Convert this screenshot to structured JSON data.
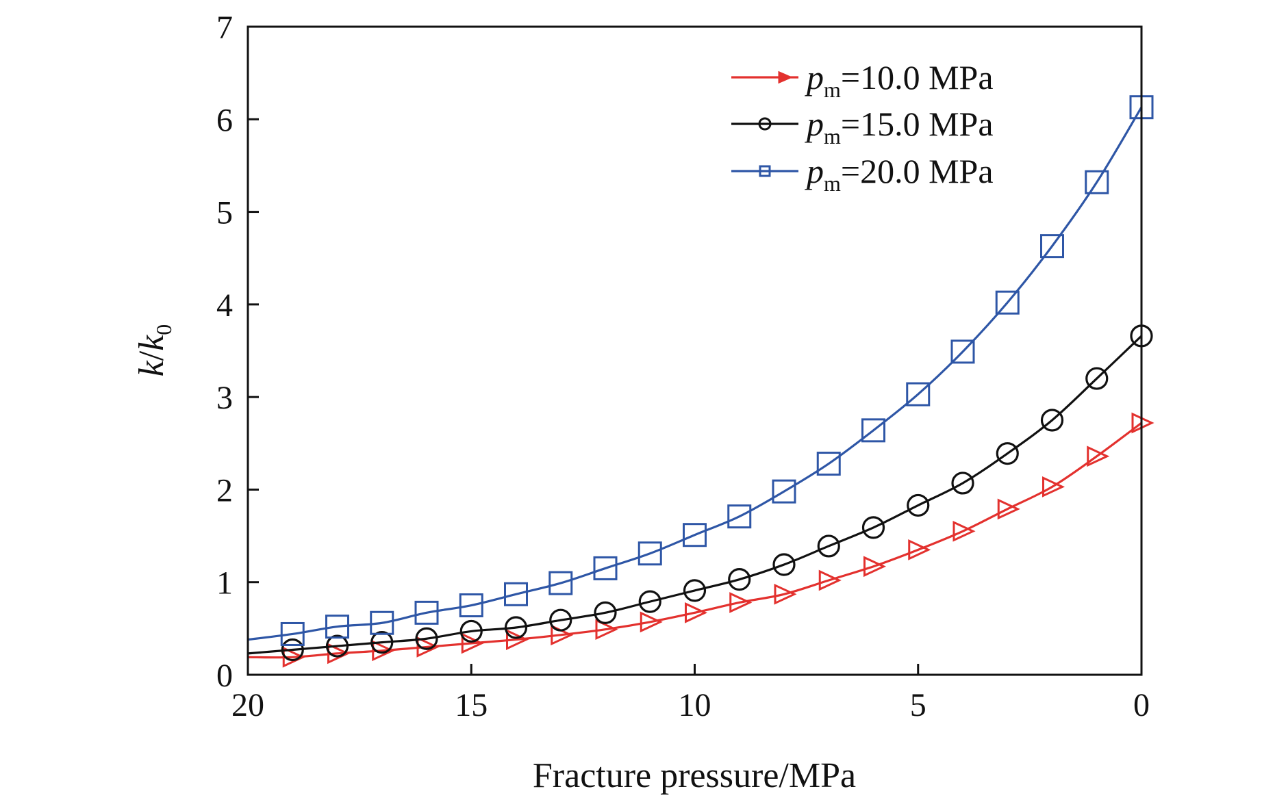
{
  "chart_data": {
    "type": "line",
    "title": "",
    "xlabel": "Fracture pressure/MPa",
    "ylabel": {
      "num": "k",
      "den": "k",
      "den_sub": "0"
    },
    "xlim": [
      20,
      0
    ],
    "ylim": [
      0,
      7
    ],
    "x_reversed": true,
    "xticks": [
      20,
      15,
      10,
      5,
      0
    ],
    "yticks": [
      0,
      1,
      2,
      3,
      4,
      5,
      6,
      7
    ],
    "xtick_labels": [
      "20",
      "15",
      "10",
      "5",
      "0"
    ],
    "ytick_labels": [
      "0",
      "1",
      "2",
      "3",
      "4",
      "5",
      "6",
      "7"
    ],
    "grid": false,
    "legend_position": "top-right",
    "x": [
      19,
      18,
      17,
      16,
      15,
      14,
      13,
      12,
      11,
      10,
      9,
      8,
      7,
      6,
      5,
      4,
      3,
      2,
      1,
      0
    ],
    "series": [
      {
        "name": "p_m=10.0 MPa",
        "legend_var": "p",
        "legend_sub": "m",
        "legend_rest": "=10.0 MPa",
        "color": "#e3312e",
        "marker": "triangle-right",
        "line_start": [
          20,
          0.19
        ],
        "values": [
          0.19,
          0.23,
          0.26,
          0.3,
          0.34,
          0.38,
          0.43,
          0.49,
          0.57,
          0.67,
          0.78,
          0.87,
          1.02,
          1.17,
          1.35,
          1.55,
          1.79,
          2.03,
          2.36,
          2.72
        ]
      },
      {
        "name": "p_m=15.0 MPa",
        "legend_var": "p",
        "legend_sub": "m",
        "legend_rest": "=15.0 MPa",
        "color": "#111111",
        "marker": "circle",
        "line_start": [
          20,
          0.23
        ],
        "values": [
          0.27,
          0.31,
          0.35,
          0.39,
          0.47,
          0.51,
          0.59,
          0.67,
          0.79,
          0.91,
          1.03,
          1.19,
          1.39,
          1.59,
          1.83,
          2.07,
          2.39,
          2.75,
          3.2,
          3.66
        ]
      },
      {
        "name": "p_m=20.0 MPa",
        "legend_var": "p",
        "legend_sub": "m",
        "legend_rest": "=20.0 MPa",
        "color": "#2e56a6",
        "marker": "square",
        "line_start": [
          20,
          0.38
        ],
        "values": [
          0.44,
          0.52,
          0.56,
          0.67,
          0.75,
          0.87,
          0.99,
          1.15,
          1.31,
          1.51,
          1.71,
          1.98,
          2.28,
          2.64,
          3.03,
          3.49,
          4.02,
          4.63,
          5.32,
          6.13
        ]
      }
    ]
  }
}
